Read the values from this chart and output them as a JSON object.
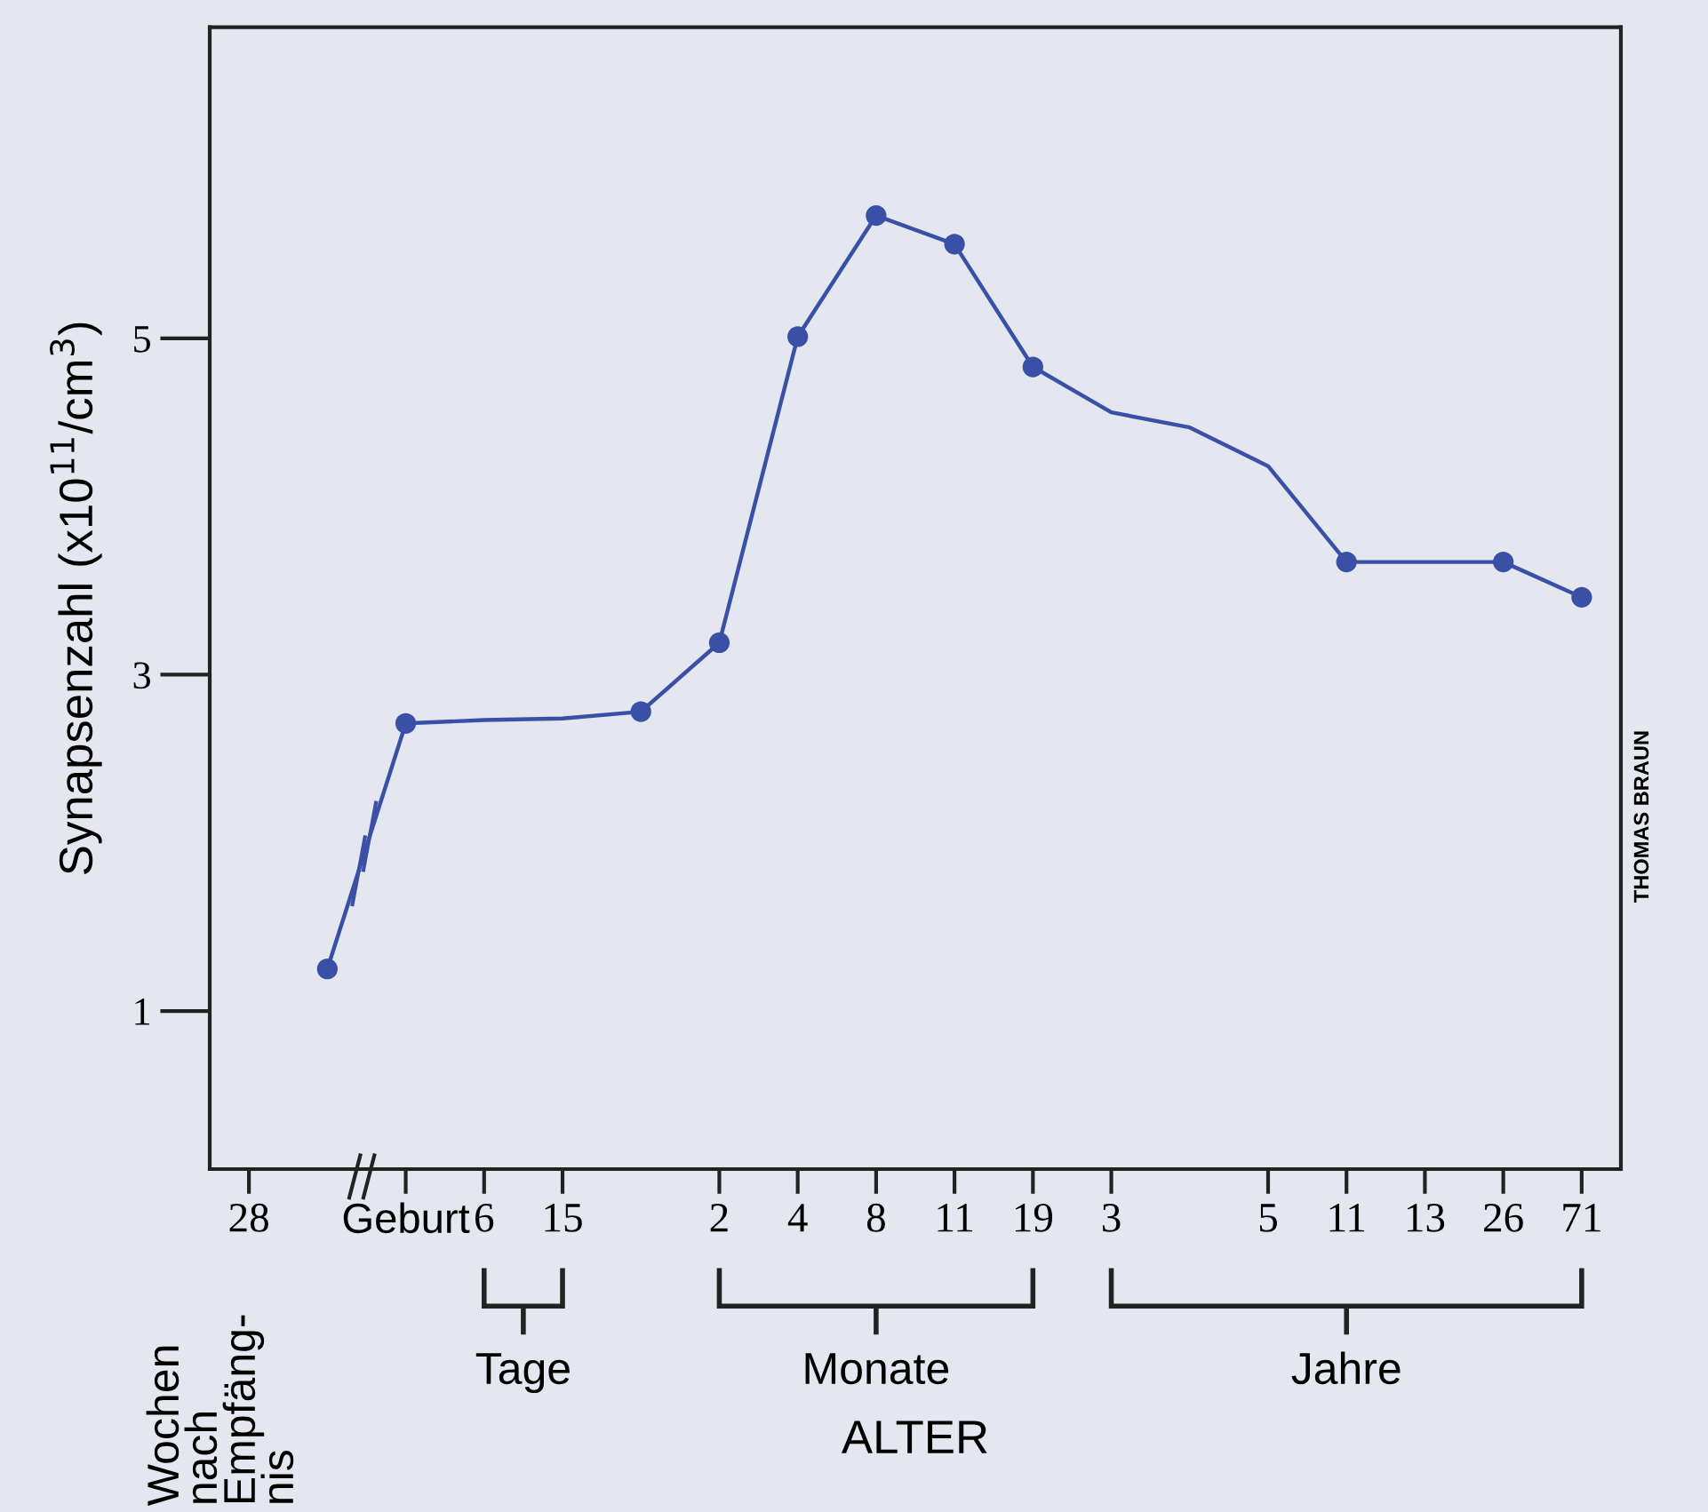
{
  "chart_data": {
    "type": "line",
    "ylabel": "Synapsenzahl (x10$^{11}$/cm$^{3}$)",
    "xlabel": "ALTER",
    "categories": [
      "28",
      null,
      "Geburt",
      "6",
      "15",
      null,
      "2",
      "4",
      "8",
      "11",
      "19",
      "3",
      null,
      "5",
      "11",
      "13",
      "26",
      "71"
    ],
    "ylim": [
      0.06,
      6.85
    ],
    "yticks": [
      5,
      3,
      1
    ],
    "series": [
      {
        "color": "#3a50a6",
        "values": [
          null,
          1.25,
          2.71,
          2.73,
          2.74,
          2.78,
          3.19,
          5.01,
          5.73,
          5.56,
          4.83,
          4.56,
          4.47,
          4.24,
          3.67,
          3.67,
          3.67,
          3.46
        ]
      },
      {
        "type": "scatter",
        "marker": "circle",
        "color": "#3a50a6",
        "values": [
          null,
          1.25,
          2.71,
          null,
          null,
          2.78,
          3.19,
          5.01,
          5.73,
          5.56,
          4.83,
          null,
          null,
          null,
          3.67,
          null,
          3.67,
          3.46
        ]
      }
    ],
    "annotations": [
      "Wochen\nnach\nEmpfäng-\nnis",
      "Tage",
      "Monate",
      "Jahre",
      "THOMAS BRAUN"
    ],
    "grid": false,
    "legend": false
  }
}
